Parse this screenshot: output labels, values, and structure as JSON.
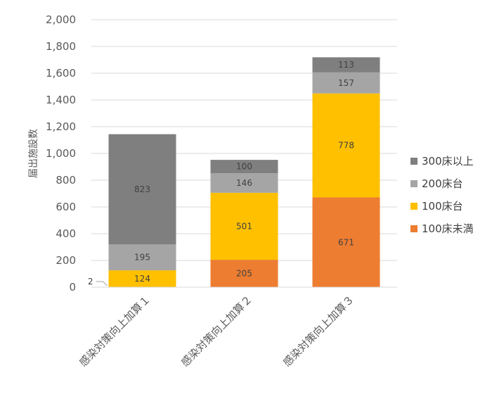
{
  "chart_data": {
    "type": "bar",
    "stacked": true,
    "categories": [
      "感染対策向上加算１",
      "感染対策向上加算２",
      "感染対策向上加算３"
    ],
    "ylabel": "届出施設数",
    "ylim": [
      0,
      2000
    ],
    "yticks": [
      0,
      200,
      400,
      600,
      800,
      1000,
      1200,
      1400,
      1600,
      1800,
      2000
    ],
    "ytick_labels": [
      "0",
      "200",
      "400",
      "600",
      "800",
      "1,000",
      "1,200",
      "1,400",
      "1,600",
      "1,800",
      "2,000"
    ],
    "grid": true,
    "legend_position": "right",
    "series": [
      {
        "name": "100床未満",
        "color": "#ED7D31",
        "values": [
          2,
          205,
          671
        ]
      },
      {
        "name": "100床台",
        "color": "#FFC000",
        "values": [
          124,
          501,
          778
        ]
      },
      {
        "name": "200床台",
        "color": "#A5A5A5",
        "values": [
          195,
          146,
          157
        ]
      },
      {
        "name": "300床以上",
        "color": "#7F7F7F",
        "values": [
          823,
          100,
          113
        ]
      }
    ]
  }
}
